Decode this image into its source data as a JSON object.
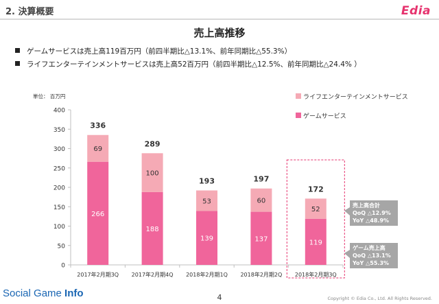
{
  "header": {
    "section_title": "2. 決算概要",
    "logo_text": "Edia"
  },
  "page_title": "売上高推移",
  "bullets": [
    "ゲームサービスは売上高119百万円（前四半期比△13.1%、前年同期比△55.3%）",
    "ライフエンターテインメントサービスは売上高52百万円（前四半期比△12.5%、前年同期比△24.4% ）"
  ],
  "chart_data": {
    "type": "bar",
    "stacked": true,
    "unit_label": "単位： 百万円",
    "categories": [
      "2017年2月期3Q",
      "2017年2月期4Q",
      "2018年2月期1Q",
      "2018年2月期2Q",
      "2018年2月期3Q"
    ],
    "series": [
      {
        "name": "ゲームサービス",
        "values": [
          266,
          188,
          139,
          137,
          119
        ],
        "color": "#f0659b"
      },
      {
        "name": "ライフエンターテインメントサービス",
        "values": [
          69,
          100,
          53,
          60,
          52
        ],
        "color": "#f5aab5"
      }
    ],
    "totals": [
      "336",
      "289",
      "193",
      "197",
      "172"
    ],
    "ylim": [
      0,
      400
    ],
    "yticks": [
      0,
      50,
      100,
      150,
      200,
      250,
      300,
      350,
      400
    ],
    "grid": false,
    "legend_position": "top-right",
    "highlight_category": "2018年2月期3Q",
    "callouts": [
      {
        "lines": [
          "売上高合計",
          "QoQ △12.9%",
          "YoY  △48.9%"
        ]
      },
      {
        "lines": [
          "ゲーム売上高",
          "QoQ △13.1%",
          "YoY  △55.3%"
        ]
      }
    ],
    "callout_color": "#a6a6a6"
  },
  "footer": {
    "brand_prefix": "Social Game ",
    "brand_bold": "Info",
    "page_number": "4",
    "copyright": "Copyright © Edia Co., Ltd. All Rights Reserved."
  }
}
